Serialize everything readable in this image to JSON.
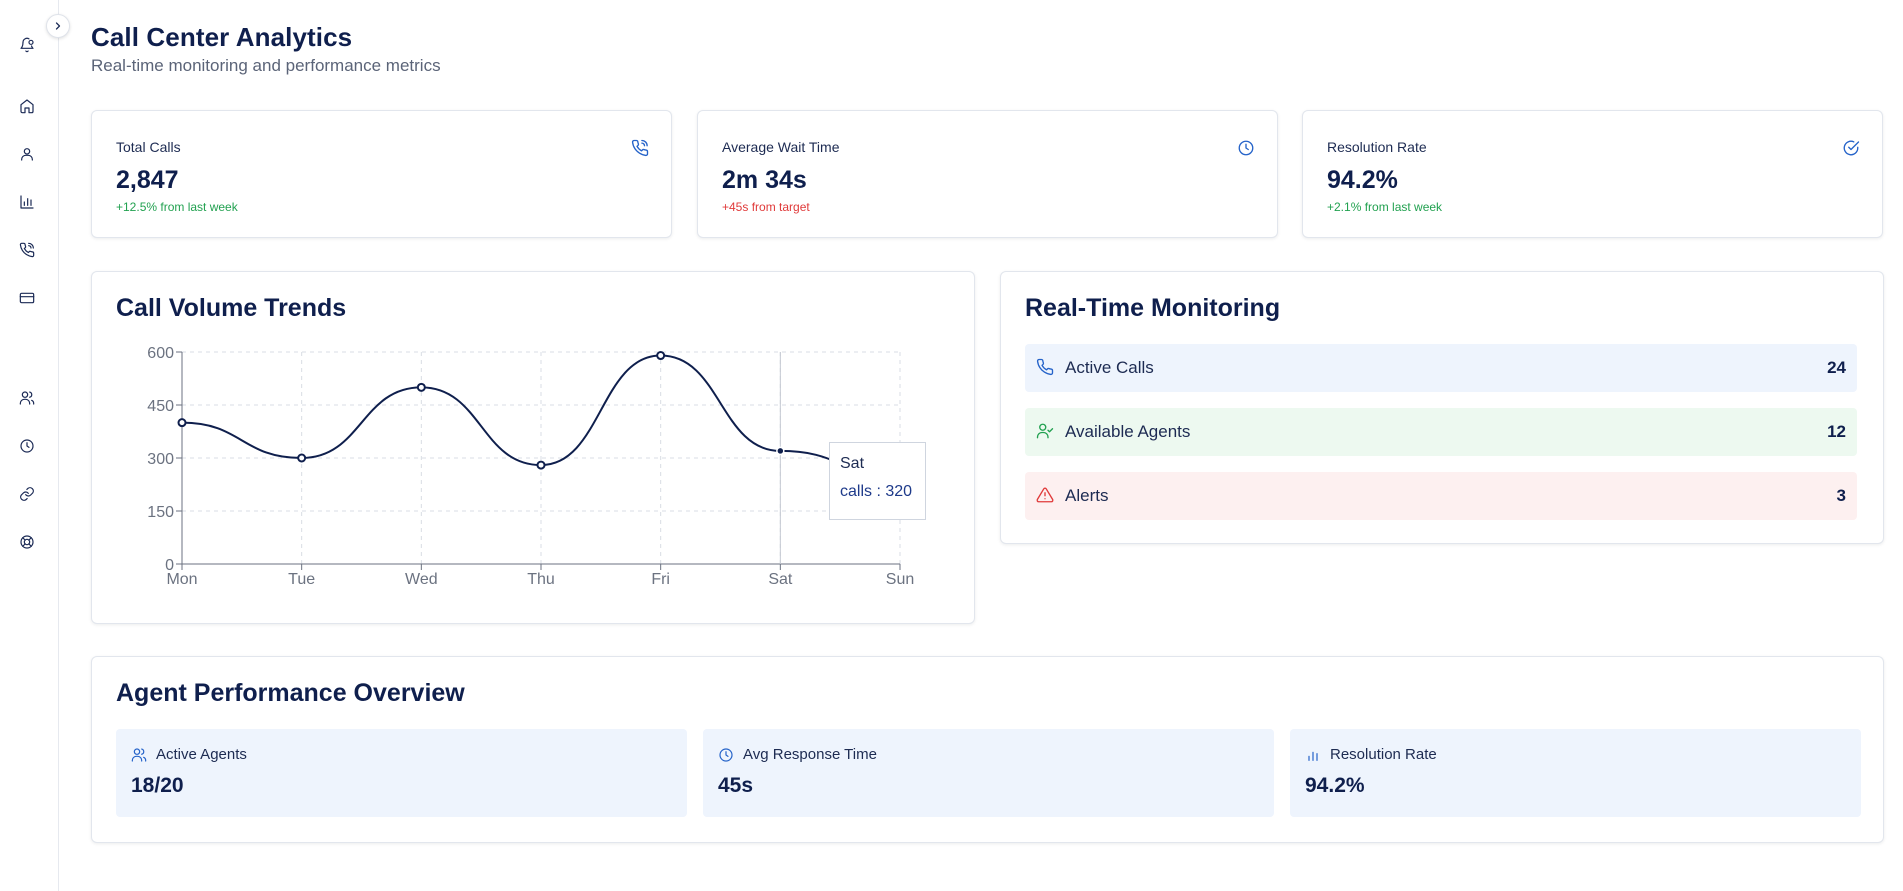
{
  "header": {
    "title": "Call Center Analytics",
    "subtitle": "Real-time monitoring and performance metrics"
  },
  "sidebar": {
    "items": [
      {
        "icon": "bell-icon"
      },
      {
        "icon": "home-icon"
      },
      {
        "icon": "user-icon"
      },
      {
        "icon": "bar-chart-icon"
      },
      {
        "icon": "phone-icon"
      },
      {
        "icon": "credit-card-icon"
      },
      {
        "icon": "users-icon"
      },
      {
        "icon": "clock-icon"
      },
      {
        "icon": "link-icon"
      },
      {
        "icon": "support-icon"
      }
    ]
  },
  "stats": [
    {
      "label": "Total Calls",
      "value": "2,847",
      "change": "+12.5% from last week",
      "trend": "positive",
      "icon": "phone-call-icon"
    },
    {
      "label": "Average Wait Time",
      "value": "2m 34s",
      "change": "+45s from target",
      "trend": "negative",
      "icon": "clock-icon"
    },
    {
      "label": "Resolution Rate",
      "value": "94.2%",
      "change": "+2.1% from last week",
      "trend": "positive",
      "icon": "check-circle-icon"
    }
  ],
  "call_volume": {
    "title": "Call Volume Trends",
    "tooltip": {
      "day": "Sat",
      "text": "calls : 320"
    }
  },
  "chart_data": {
    "type": "line",
    "title": "Call Volume Trends",
    "xlabel": "",
    "ylabel": "",
    "categories": [
      "Mon",
      "Tue",
      "Wed",
      "Thu",
      "Fri",
      "Sat",
      "Sun"
    ],
    "series": [
      {
        "key": "calls",
        "values": [
          400,
          300,
          500,
          280,
          590,
          320,
          250
        ]
      }
    ],
    "ylim": [
      0,
      600
    ],
    "yticks": [
      0,
      150,
      300,
      450,
      600
    ],
    "grid": true,
    "line_color": "#0f1f4d"
  },
  "monitoring": {
    "title": "Real-Time Monitoring",
    "rows": [
      {
        "label": "Active Calls",
        "value": "24",
        "icon": "phone-icon",
        "bg": "#eef4fd",
        "icon_color": "#2563c9"
      },
      {
        "label": "Available Agents",
        "value": "12",
        "icon": "user-check-icon",
        "bg": "#edf9f0",
        "icon_color": "#22a150"
      },
      {
        "label": "Alerts",
        "value": "3",
        "icon": "alert-triangle-icon",
        "bg": "#fdf0f0",
        "icon_color": "#e03a3a"
      }
    ]
  },
  "agent_performance": {
    "title": "Agent Performance Overview",
    "items": [
      {
        "label": "Active Agents",
        "value": "18/20",
        "icon": "users-icon"
      },
      {
        "label": "Avg Response Time",
        "value": "45s",
        "icon": "clock-icon"
      },
      {
        "label": "Resolution Rate",
        "value": "94.2%",
        "icon": "bar-chart-icon"
      }
    ]
  },
  "colors": {
    "primary": "#0f1f4d",
    "accent": "#2563c9",
    "positive": "#22a150",
    "negative": "#e03a3a"
  }
}
